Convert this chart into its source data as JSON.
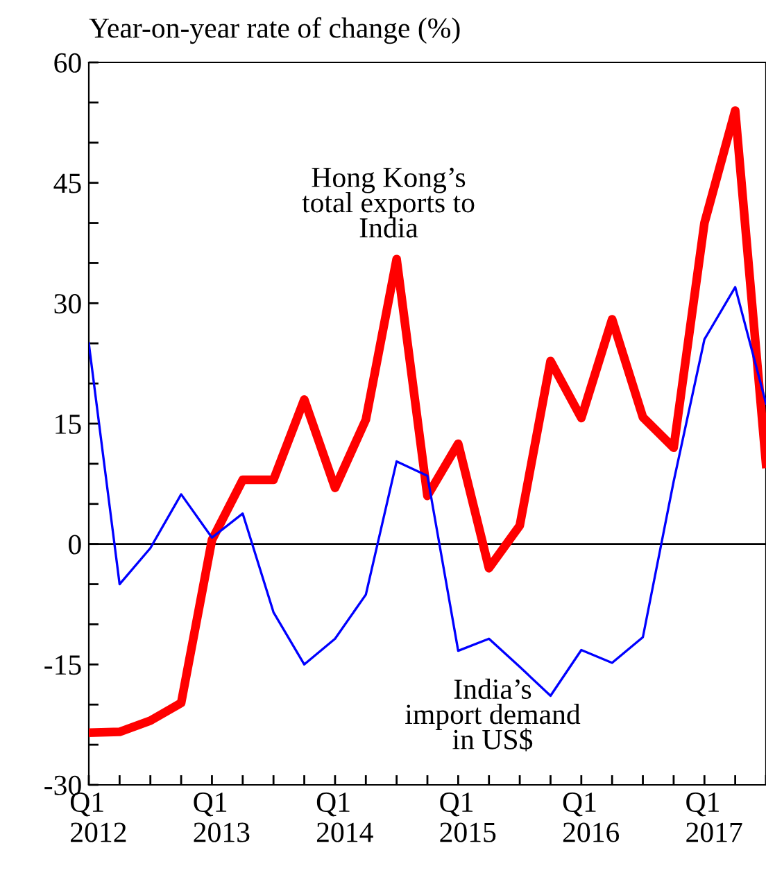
{
  "chart_data": {
    "type": "line",
    "ylabel": "Year-on-year rate of change (%)",
    "categories": [
      "Q1\n2012",
      null,
      null,
      null,
      "Q1\n2013",
      null,
      null,
      null,
      "Q1\n2014",
      null,
      null,
      null,
      "Q1\n2015",
      null,
      null,
      null,
      "Q1\n2016",
      null,
      null,
      null,
      "Q1\n2017",
      null,
      null
    ],
    "series": [
      {
        "color": "#0000ff",
        "values": [
          25,
          -5,
          -0.5,
          6.2,
          0.8,
          3.8,
          -8.5,
          -15,
          -11.8,
          -6.3,
          10.3,
          8.5,
          -13.3,
          -11.8,
          -15.3,
          -18.9,
          -13.2,
          -14.8,
          -11.6,
          7.8,
          25.5,
          32,
          17.5
        ]
      },
      {
        "color": "#ff0000",
        "values": [
          -23.5,
          -23.4,
          -22,
          -19.8,
          0.5,
          8,
          8,
          18,
          7,
          15.5,
          35.5,
          6,
          12.5,
          -3,
          2.3,
          22.8,
          15.7,
          28,
          15.8,
          12,
          40,
          54,
          10
        ]
      }
    ],
    "ylim": [
      -30,
      60
    ],
    "yticks": [
      -30,
      {
        "value": -25,
        "label": null
      },
      {
        "value": -20,
        "label": null
      },
      -15,
      {
        "value": -10,
        "label": null
      },
      {
        "value": -5,
        "label": null
      },
      0,
      {
        "value": 5,
        "label": null
      },
      {
        "value": 10,
        "label": null
      },
      15,
      {
        "value": 20,
        "label": null
      },
      {
        "value": 25,
        "label": null
      },
      30,
      {
        "value": 35,
        "label": null
      },
      {
        "value": 40,
        "label": null
      },
      45,
      {
        "value": 50,
        "label": null
      },
      {
        "value": 55,
        "label": null
      },
      60
    ],
    "ref_lines": [
      {
        "axis": "y",
        "value": 0,
        "color": "#000000"
      }
    ],
    "annotations": [
      "Hong Kong’s\ntotal exports to\nIndia",
      "India’s\nimport demand\nin US$"
    ],
    "grid": false,
    "legend": false,
    "marker": "none",
    "line_style": "solid"
  }
}
